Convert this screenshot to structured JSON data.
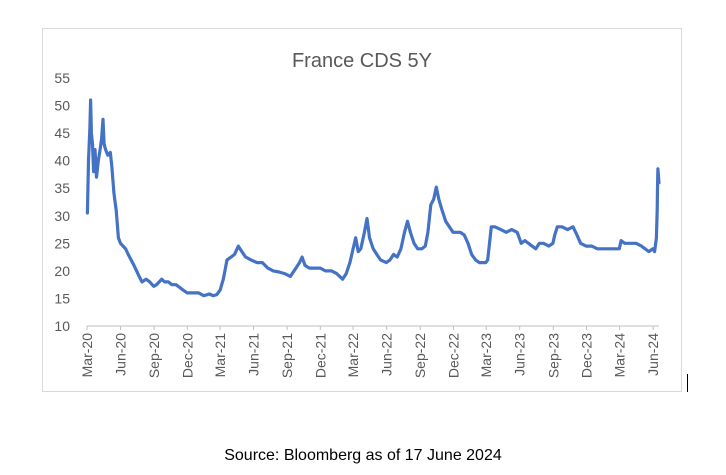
{
  "chart_data": {
    "type": "line",
    "title": "France CDS 5Y",
    "xlabel": "",
    "ylabel": "",
    "ylim": [
      10,
      55
    ],
    "yticks": [
      10,
      15,
      20,
      25,
      30,
      35,
      40,
      45,
      50,
      55
    ],
    "grid": false,
    "legend": "none",
    "line_color": "#4472c4",
    "x_tick_labels": [
      "Mar-20",
      "Jun-20",
      "Sep-20",
      "Dec-20",
      "Mar-21",
      "Jun-21",
      "Sep-21",
      "Dec-21",
      "Mar-22",
      "Jun-22",
      "Sep-22",
      "Dec-22",
      "Mar-23",
      "Jun-23",
      "Sep-23",
      "Dec-23",
      "Mar-24",
      "Jun-24"
    ],
    "series": [
      {
        "name": "",
        "points": [
          [
            "2020-03-02",
            30.5
          ],
          [
            "2020-03-05",
            40
          ],
          [
            "2020-03-09",
            46
          ],
          [
            "2020-03-11",
            51
          ],
          [
            "2020-03-13",
            45
          ],
          [
            "2020-03-16",
            43
          ],
          [
            "2020-03-19",
            38
          ],
          [
            "2020-03-23",
            42
          ],
          [
            "2020-03-27",
            37
          ],
          [
            "2020-04-01",
            40
          ],
          [
            "2020-04-06",
            42
          ],
          [
            "2020-04-10",
            44
          ],
          [
            "2020-04-14",
            47.5
          ],
          [
            "2020-04-17",
            43
          ],
          [
            "2020-04-21",
            42
          ],
          [
            "2020-04-27",
            41
          ],
          [
            "2020-05-04",
            41.5
          ],
          [
            "2020-05-08",
            39
          ],
          [
            "2020-05-14",
            34
          ],
          [
            "2020-05-20",
            31
          ],
          [
            "2020-05-26",
            26
          ],
          [
            "2020-06-01",
            25
          ],
          [
            "2020-06-08",
            24.5
          ],
          [
            "2020-06-15",
            24
          ],
          [
            "2020-06-22",
            23
          ],
          [
            "2020-06-30",
            22
          ],
          [
            "2020-07-08",
            21
          ],
          [
            "2020-07-15",
            20
          ],
          [
            "2020-07-22",
            19
          ],
          [
            "2020-07-30",
            18
          ],
          [
            "2020-08-10",
            18.5
          ],
          [
            "2020-08-20",
            18
          ],
          [
            "2020-08-31",
            17.2
          ],
          [
            "2020-09-08",
            17.5
          ],
          [
            "2020-09-15",
            18
          ],
          [
            "2020-09-22",
            18.5
          ],
          [
            "2020-09-30",
            18
          ],
          [
            "2020-10-10",
            18
          ],
          [
            "2020-10-20",
            17.5
          ],
          [
            "2020-10-31",
            17.5
          ],
          [
            "2020-11-10",
            17
          ],
          [
            "2020-11-20",
            16.5
          ],
          [
            "2020-12-01",
            16
          ],
          [
            "2020-12-15",
            16
          ],
          [
            "2021-01-01",
            16
          ],
          [
            "2021-01-15",
            15.5
          ],
          [
            "2021-01-31",
            15.8
          ],
          [
            "2021-02-10",
            15.5
          ],
          [
            "2021-02-20",
            15.7
          ],
          [
            "2021-03-01",
            16.5
          ],
          [
            "2021-03-10",
            18.5
          ],
          [
            "2021-03-20",
            22
          ],
          [
            "2021-03-31",
            22.5
          ],
          [
            "2021-04-10",
            23
          ],
          [
            "2021-04-20",
            24.5
          ],
          [
            "2021-04-30",
            23.5
          ],
          [
            "2021-05-10",
            22.5
          ],
          [
            "2021-05-25",
            22
          ],
          [
            "2021-06-10",
            21.5
          ],
          [
            "2021-06-25",
            21.5
          ],
          [
            "2021-07-10",
            20.5
          ],
          [
            "2021-07-25",
            20
          ],
          [
            "2021-08-10",
            19.8
          ],
          [
            "2021-08-25",
            19.5
          ],
          [
            "2021-09-10",
            19
          ],
          [
            "2021-09-25",
            20.5
          ],
          [
            "2021-10-05",
            21.5
          ],
          [
            "2021-10-12",
            22.5
          ],
          [
            "2021-10-20",
            21
          ],
          [
            "2021-11-01",
            20.5
          ],
          [
            "2021-11-15",
            20.5
          ],
          [
            "2021-12-01",
            20.5
          ],
          [
            "2021-12-15",
            20
          ],
          [
            "2022-01-01",
            20
          ],
          [
            "2022-01-15",
            19.5
          ],
          [
            "2022-01-31",
            18.5
          ],
          [
            "2022-02-10",
            19.5
          ],
          [
            "2022-02-20",
            21.5
          ],
          [
            "2022-03-01",
            24
          ],
          [
            "2022-03-08",
            26
          ],
          [
            "2022-03-15",
            23.5
          ],
          [
            "2022-03-22",
            24
          ],
          [
            "2022-04-01",
            27
          ],
          [
            "2022-04-08",
            29.5
          ],
          [
            "2022-04-15",
            26
          ],
          [
            "2022-04-25",
            24
          ],
          [
            "2022-05-05",
            23
          ],
          [
            "2022-05-15",
            22
          ],
          [
            "2022-05-31",
            21.5
          ],
          [
            "2022-06-10",
            22
          ],
          [
            "2022-06-20",
            23
          ],
          [
            "2022-06-30",
            22.5
          ],
          [
            "2022-07-10",
            24
          ],
          [
            "2022-07-20",
            27
          ],
          [
            "2022-07-28",
            29
          ],
          [
            "2022-08-05",
            27
          ],
          [
            "2022-08-15",
            25
          ],
          [
            "2022-08-25",
            24
          ],
          [
            "2022-09-05",
            24
          ],
          [
            "2022-09-15",
            24.5
          ],
          [
            "2022-09-22",
            27
          ],
          [
            "2022-09-30",
            32
          ],
          [
            "2022-10-08",
            33
          ],
          [
            "2022-10-15",
            35.2
          ],
          [
            "2022-10-22",
            33
          ],
          [
            "2022-10-31",
            31
          ],
          [
            "2022-11-10",
            29
          ],
          [
            "2022-11-20",
            28
          ],
          [
            "2022-11-30",
            27
          ],
          [
            "2022-12-10",
            27
          ],
          [
            "2022-12-20",
            27
          ],
          [
            "2022-12-31",
            26.5
          ],
          [
            "2023-01-10",
            25
          ],
          [
            "2023-01-20",
            23
          ],
          [
            "2023-01-31",
            22
          ],
          [
            "2023-02-10",
            21.5
          ],
          [
            "2023-02-20",
            21.5
          ],
          [
            "2023-02-28",
            21.5
          ],
          [
            "2023-03-05",
            22
          ],
          [
            "2023-03-10",
            25
          ],
          [
            "2023-03-15",
            28
          ],
          [
            "2023-03-25",
            28
          ],
          [
            "2023-04-10",
            27.5
          ],
          [
            "2023-04-25",
            27
          ],
          [
            "2023-05-10",
            27.5
          ],
          [
            "2023-05-25",
            27
          ],
          [
            "2023-06-05",
            25
          ],
          [
            "2023-06-15",
            25.5
          ],
          [
            "2023-06-25",
            25
          ],
          [
            "2023-07-05",
            24.5
          ],
          [
            "2023-07-15",
            24
          ],
          [
            "2023-07-25",
            25
          ],
          [
            "2023-08-05",
            25
          ],
          [
            "2023-08-20",
            24.5
          ],
          [
            "2023-08-31",
            25
          ],
          [
            "2023-09-05",
            26.5
          ],
          [
            "2023-09-12",
            28
          ],
          [
            "2023-09-25",
            28
          ],
          [
            "2023-10-10",
            27.5
          ],
          [
            "2023-10-25",
            28
          ],
          [
            "2023-11-05",
            26.5
          ],
          [
            "2023-11-15",
            25
          ],
          [
            "2023-11-30",
            24.5
          ],
          [
            "2023-12-15",
            24.5
          ],
          [
            "2023-12-31",
            24
          ],
          [
            "2024-01-15",
            24
          ],
          [
            "2024-01-31",
            24
          ],
          [
            "2024-02-15",
            24
          ],
          [
            "2024-02-29",
            24
          ],
          [
            "2024-03-05",
            25.5
          ],
          [
            "2024-03-15",
            25
          ],
          [
            "2024-03-31",
            25
          ],
          [
            "2024-04-15",
            25
          ],
          [
            "2024-04-30",
            24.5
          ],
          [
            "2024-05-10",
            24
          ],
          [
            "2024-05-20",
            23.5
          ],
          [
            "2024-05-31",
            24
          ],
          [
            "2024-06-05",
            23.5
          ],
          [
            "2024-06-10",
            26
          ],
          [
            "2024-06-12",
            31
          ],
          [
            "2024-06-13",
            35
          ],
          [
            "2024-06-14",
            38.5
          ],
          [
            "2024-06-17",
            36
          ]
        ]
      }
    ]
  },
  "source_note": "Source: Bloomberg as of 17 June 2024"
}
